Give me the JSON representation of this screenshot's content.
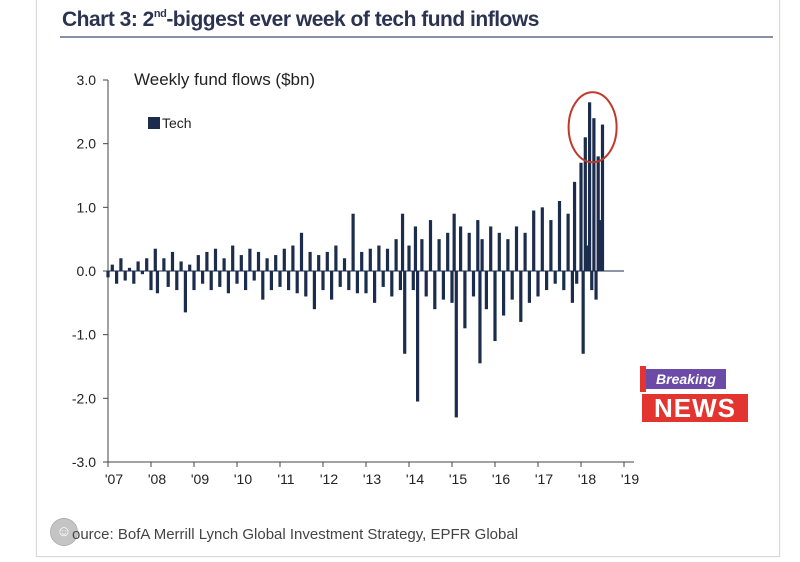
{
  "header": {
    "title_pre": "Chart 3: 2",
    "title_sup": "nd",
    "title_post": "-biggest ever week of tech fund inflows"
  },
  "chart_data": {
    "type": "bar",
    "title": "Weekly fund flows ($bn)",
    "xlabel": "",
    "ylabel": "",
    "ylim": [
      -3.0,
      3.0
    ],
    "yticks": [
      "3.0",
      "2.0",
      "1.0",
      "0.0",
      "-1.0",
      "-2.0",
      "-3.0"
    ],
    "xticks": [
      "'07",
      "'08",
      "'09",
      "'10",
      "'11",
      "'12",
      "'13",
      "'14",
      "'15",
      "'16",
      "'17",
      "'18",
      "'19"
    ],
    "x_range": [
      2007,
      2019
    ],
    "legend": {
      "placement": "top-left"
    },
    "grid": false,
    "series": [
      {
        "name": "Tech",
        "color": "#1c2c4c",
        "points": [
          [
            2007.0,
            -0.1
          ],
          [
            2007.1,
            0.1
          ],
          [
            2007.2,
            -0.2
          ],
          [
            2007.3,
            0.2
          ],
          [
            2007.4,
            -0.15
          ],
          [
            2007.5,
            0.05
          ],
          [
            2007.6,
            -0.2
          ],
          [
            2007.7,
            0.15
          ],
          [
            2007.8,
            -0.05
          ],
          [
            2007.9,
            0.2
          ],
          [
            2008.0,
            -0.3
          ],
          [
            2008.1,
            0.35
          ],
          [
            2008.15,
            -0.35
          ],
          [
            2008.3,
            0.2
          ],
          [
            2008.4,
            -0.25
          ],
          [
            2008.5,
            0.3
          ],
          [
            2008.6,
            -0.3
          ],
          [
            2008.7,
            0.15
          ],
          [
            2008.8,
            -0.65
          ],
          [
            2008.9,
            0.1
          ],
          [
            2009.0,
            -0.3
          ],
          [
            2009.1,
            0.25
          ],
          [
            2009.2,
            -0.2
          ],
          [
            2009.3,
            0.3
          ],
          [
            2009.4,
            -0.3
          ],
          [
            2009.5,
            0.35
          ],
          [
            2009.6,
            -0.25
          ],
          [
            2009.7,
            0.2
          ],
          [
            2009.8,
            -0.35
          ],
          [
            2009.9,
            0.4
          ],
          [
            2010.0,
            -0.2
          ],
          [
            2010.1,
            0.25
          ],
          [
            2010.2,
            -0.3
          ],
          [
            2010.3,
            0.35
          ],
          [
            2010.4,
            -0.15
          ],
          [
            2010.5,
            0.3
          ],
          [
            2010.6,
            -0.45
          ],
          [
            2010.7,
            0.2
          ],
          [
            2010.8,
            -0.3
          ],
          [
            2010.9,
            0.25
          ],
          [
            2011.0,
            -0.25
          ],
          [
            2011.1,
            0.35
          ],
          [
            2011.2,
            -0.3
          ],
          [
            2011.3,
            0.4
          ],
          [
            2011.4,
            -0.35
          ],
          [
            2011.5,
            0.6
          ],
          [
            2011.6,
            -0.4
          ],
          [
            2011.7,
            0.3
          ],
          [
            2011.8,
            -0.6
          ],
          [
            2011.9,
            0.25
          ],
          [
            2012.0,
            -0.3
          ],
          [
            2012.1,
            0.3
          ],
          [
            2012.2,
            -0.45
          ],
          [
            2012.3,
            0.4
          ],
          [
            2012.4,
            -0.25
          ],
          [
            2012.5,
            0.2
          ],
          [
            2012.6,
            -0.3
          ],
          [
            2012.7,
            0.9
          ],
          [
            2012.8,
            -0.35
          ],
          [
            2012.9,
            0.3
          ],
          [
            2013.0,
            -0.35
          ],
          [
            2013.1,
            0.35
          ],
          [
            2013.2,
            -0.5
          ],
          [
            2013.3,
            0.4
          ],
          [
            2013.4,
            -0.25
          ],
          [
            2013.5,
            0.35
          ],
          [
            2013.6,
            -0.4
          ],
          [
            2013.7,
            0.5
          ],
          [
            2013.8,
            -0.3
          ],
          [
            2013.85,
            0.9
          ],
          [
            2013.9,
            -1.3
          ],
          [
            2014.0,
            0.4
          ],
          [
            2014.1,
            -0.3
          ],
          [
            2014.15,
            0.7
          ],
          [
            2014.2,
            -2.05
          ],
          [
            2014.3,
            0.5
          ],
          [
            2014.4,
            -0.4
          ],
          [
            2014.5,
            0.8
          ],
          [
            2014.6,
            -0.6
          ],
          [
            2014.7,
            0.5
          ],
          [
            2014.8,
            -0.45
          ],
          [
            2014.9,
            0.6
          ],
          [
            2015.0,
            -0.5
          ],
          [
            2015.05,
            0.9
          ],
          [
            2015.1,
            -2.3
          ],
          [
            2015.2,
            0.7
          ],
          [
            2015.3,
            -0.9
          ],
          [
            2015.4,
            0.6
          ],
          [
            2015.5,
            -0.4
          ],
          [
            2015.6,
            0.8
          ],
          [
            2015.65,
            -1.45
          ],
          [
            2015.7,
            0.5
          ],
          [
            2015.8,
            -0.6
          ],
          [
            2015.9,
            0.7
          ],
          [
            2016.0,
            -1.1
          ],
          [
            2016.1,
            0.6
          ],
          [
            2016.2,
            -0.7
          ],
          [
            2016.3,
            0.5
          ],
          [
            2016.4,
            -0.45
          ],
          [
            2016.5,
            0.7
          ],
          [
            2016.6,
            -0.8
          ],
          [
            2016.7,
            0.6
          ],
          [
            2016.8,
            -0.5
          ],
          [
            2016.9,
            0.95
          ],
          [
            2017.0,
            -0.4
          ],
          [
            2017.1,
            1.0
          ],
          [
            2017.2,
            -0.3
          ],
          [
            2017.3,
            0.8
          ],
          [
            2017.4,
            -0.2
          ],
          [
            2017.5,
            1.1
          ],
          [
            2017.6,
            -0.3
          ],
          [
            2017.7,
            0.9
          ],
          [
            2017.8,
            -0.5
          ],
          [
            2017.85,
            1.4
          ],
          [
            2017.9,
            -0.2
          ],
          [
            2018.0,
            1.7
          ],
          [
            2018.05,
            -1.3
          ],
          [
            2018.1,
            2.1
          ],
          [
            2018.15,
            0.4
          ],
          [
            2018.2,
            2.65
          ],
          [
            2018.25,
            -0.3
          ],
          [
            2018.3,
            2.4
          ],
          [
            2018.35,
            -0.45
          ],
          [
            2018.4,
            1.8
          ],
          [
            2018.45,
            0.8
          ],
          [
            2018.5,
            2.3
          ]
        ]
      }
    ],
    "highlight": {
      "x": 2018.2,
      "y": 2.65,
      "color": "#c0392b"
    }
  },
  "source": {
    "text": "ource: BofA Merrill Lynch Global Investment Strategy, EPFR Global"
  },
  "news_badge": {
    "top": "Breaking",
    "bottom": "NEWS"
  },
  "smiley_glyph": "☺"
}
